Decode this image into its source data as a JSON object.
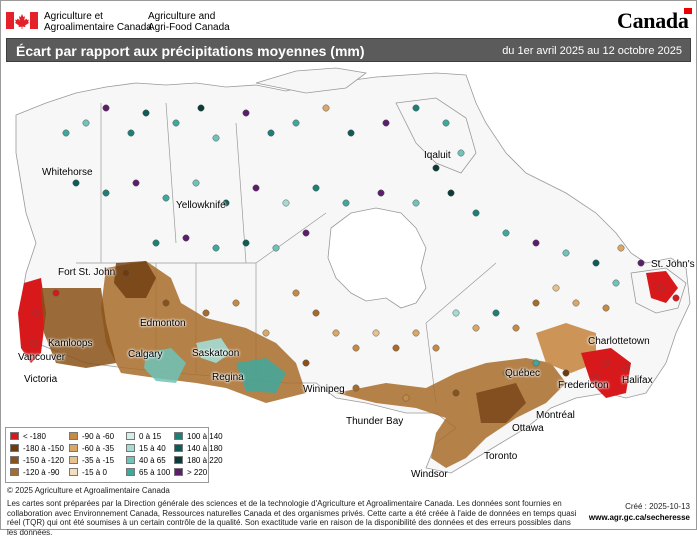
{
  "header": {
    "dept_fr_line1": "Agriculture et",
    "dept_fr_line2": "Agroalimentaire Canada",
    "dept_en_line1": "Agriculture and",
    "dept_en_line2": "Agri-Food Canada",
    "wordmark": "Canada"
  },
  "title": "Écart par rapport aux précipitations moyennes (mm)",
  "period": "du 1er avril 2025 au 12 octobre 2025",
  "cities": [
    "Whitehorse",
    "Yellowknife",
    "Iqaluit",
    "Fort St. John",
    "Edmonton",
    "Kamloops",
    "Calgary",
    "Vancouver",
    "Victoria",
    "Saskatoon",
    "Regina",
    "Winnipeg",
    "Thunder Bay",
    "Québec",
    "Charlottetown",
    "St. John's",
    "Fredericton",
    "Halifax",
    "Montréal",
    "Ottawa",
    "Toronto",
    "Windsor"
  ],
  "legend": {
    "items": [
      {
        "label": "< -180",
        "color": "#d7191c"
      },
      {
        "label": "-180 à -150",
        "color": "#6e3b0f"
      },
      {
        "label": "-150 à -120",
        "color": "#8a5218"
      },
      {
        "label": "-120 à -90",
        "color": "#a86c2a"
      },
      {
        "label": "-90 à -60",
        "color": "#c68a45"
      },
      {
        "label": "-60 à -35",
        "color": "#d9a868"
      },
      {
        "label": "-35 à -15",
        "color": "#e6c28f"
      },
      {
        "label": "-15 à 0",
        "color": "#f2e0bd"
      },
      {
        "label": "0 à 15",
        "color": "#d4efe9"
      },
      {
        "label": "15 à 40",
        "color": "#a4dcd3"
      },
      {
        "label": "40 à 65",
        "color": "#6fc3b8"
      },
      {
        "label": "65 à 100",
        "color": "#3fa89d"
      },
      {
        "label": "100 à 140",
        "color": "#1e7f78"
      },
      {
        "label": "140 à 180",
        "color": "#0f5b57"
      },
      {
        "label": "180 à 220",
        "color": "#0a3b39"
      },
      {
        "label": "> 220",
        "color": "#5c1e6b"
      }
    ]
  },
  "footer": {
    "copyright": "© 2025 Agriculture et Agroalimentaire Canada",
    "note": "Les cartes sont préparées par la Direction générale des sciences et de la technologie d'Agriculture et Agroalimentaire Canada. Les données sont fournies en collaboration avec Environnement Canada, Ressources naturelles Canada et des organismes privés. Cette carte a été créée à l'aide de données en temps quasi réel (TQR) qui ont été soumises à un certain contrôle de la qualité. Son exactitude varie en raison de la disponibilité des données et des erreurs possibles dans les données.",
    "created": "Créé : 2025-10-13",
    "url": "www.agr.gc.ca/secheresse"
  }
}
